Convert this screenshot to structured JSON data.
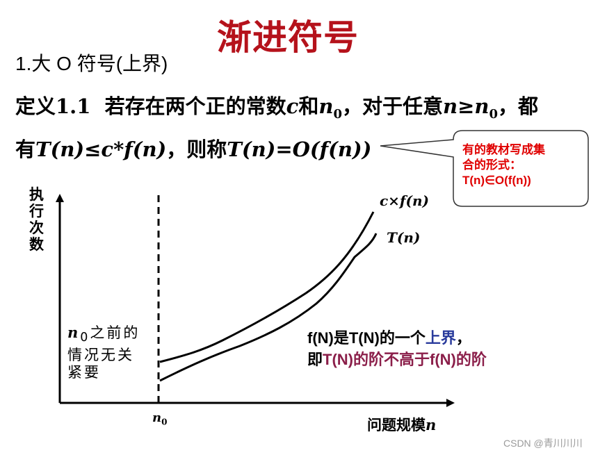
{
  "slide": {
    "title": "渐进符号",
    "section": "1.大 O 符号(上界)"
  },
  "definition": {
    "label": "定义1.1",
    "line1_a": "若存在两个正的常数",
    "c": "c",
    "and": "和",
    "n0_base": "n",
    "n0_sub": "0",
    "comma_for_any": "，对于任意",
    "n_geq": "n≥n",
    "n_geq_sub": "0",
    "line1_end": "，都",
    "line2_a": "有",
    "inequality": "T(n)≤c*f(n)",
    "line2_b": "，则称",
    "notation": "T(n)=O(f(n))"
  },
  "callout": {
    "text_line1": "有的教材写成集",
    "text_line2": "合的形式：",
    "text_line3": "T(n)∈O(f(n))",
    "text_color": "#e00000"
  },
  "graph": {
    "y_axis_label": "执行次数",
    "x_axis_label_text": "问题规模",
    "x_axis_label_var": "n",
    "n0_tick_base": "n",
    "n0_tick_sub": "0",
    "before_note_var": "n",
    "before_note_sub": "0",
    "before_note_text": "之前的情况无关紧要",
    "curve_upper_label": "c×f(n)",
    "curve_lower_label": "T(n)"
  },
  "note": {
    "line1_a": "f(N)是T(N)的一个",
    "line1_b": "上界",
    "line1_c": "，",
    "line2_a": "即",
    "line2_b": "T(N)的阶不高于f(N)的阶",
    "blue_color": "#2a3b9c",
    "maroon_color": "#8b1f4a"
  },
  "watermark": "CSDN @青川川川",
  "colors": {
    "title": "#b5121b",
    "callout_border": "#333333"
  }
}
